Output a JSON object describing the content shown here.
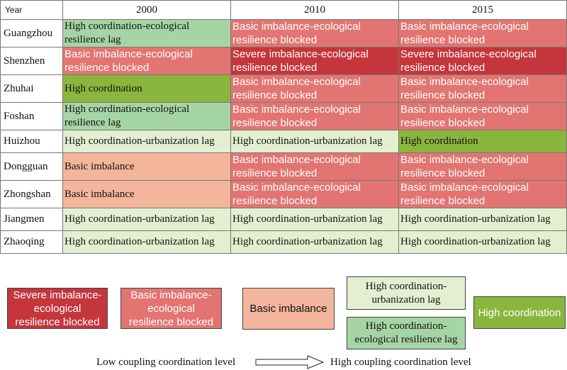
{
  "header": {
    "year_label": "Year",
    "years": [
      "2000",
      "2010",
      "2015"
    ]
  },
  "colors": {
    "severe": "#c5353c",
    "basic_blocked": "#e27571",
    "basic": "#f3b59c",
    "urb_lag": "#e3efd0",
    "eco_lag": "#a6d5a5",
    "high": "#8bb63e"
  },
  "rows": [
    {
      "city": "Guangzhou",
      "cells": [
        "High coordination-ecological resilience lag",
        "Basic imbalance-ecological resilience blocked",
        "Basic imbalance-ecological resilience blocked"
      ]
    },
    {
      "city": "Shenzhen",
      "cells": [
        "Basic imbalance-ecological resilience blocked",
        "Severe imbalance-ecological resilience blocked",
        "Severe imbalance-ecological resilience blocked"
      ]
    },
    {
      "city": "Zhuhai",
      "cells": [
        "High coordination",
        "Basic imbalance-ecological resilience blocked",
        "Basic imbalance-ecological resilience blocked"
      ]
    },
    {
      "city": "Foshan",
      "cells": [
        "High coordination-ecological resilience lag",
        "Basic imbalance-ecological resilience blocked",
        "Basic imbalance-ecological resilience blocked"
      ]
    },
    {
      "city": "Huizhou",
      "cells": [
        "High coordination-urbanization lag",
        "High coordination-urbanization lag",
        "High coordination"
      ]
    },
    {
      "city": "Dongguan",
      "cells": [
        "Basic imbalance",
        "Basic imbalance-ecological resilience blocked",
        "Basic imbalance-ecological resilience blocked"
      ]
    },
    {
      "city": "Zhongshan",
      "cells": [
        "Basic imbalance",
        "Basic imbalance-ecological resilience blocked",
        "Basic imbalance-ecological resilience blocked"
      ]
    },
    {
      "city": "Jiangmen",
      "cells": [
        "High coordination-urbanization lag",
        "High coordination-urbanization lag",
        "High coordination-urbanization lag"
      ]
    },
    {
      "city": "Zhaoqing",
      "cells": [
        "High coordination-urbanization lag",
        "High coordination-urbanization lag",
        "High coordination-urbanization lag"
      ]
    }
  ],
  "legend": {
    "severe": "Severe imbalance-ecological resilience blocked",
    "basic_blocked": "Basic imbalance-ecological resilience blocked",
    "basic": "Basic imbalance",
    "urb_lag": "High coordination-urbanization lag",
    "eco_lag": "High coordination-ecological resilience lag",
    "high": "High coordination"
  },
  "scale": {
    "low": "Low coupling coordination level",
    "high": "High coupling coordination level"
  }
}
